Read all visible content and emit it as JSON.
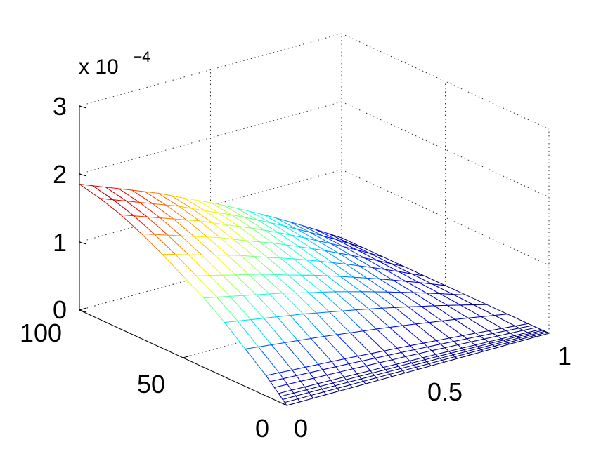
{
  "chart_data": {
    "type": "surface",
    "render": "mesh",
    "colormap": "jet",
    "x_axis": {
      "ticks": [
        "0",
        "0.5",
        "1"
      ],
      "range": [
        0,
        1
      ]
    },
    "y_axis": {
      "ticks": [
        "0",
        "50",
        "100"
      ],
      "range": [
        0,
        100
      ]
    },
    "z_axis": {
      "ticks": [
        "0",
        "1",
        "2",
        "3"
      ],
      "range": [
        0,
        3
      ],
      "multiplier": "x 10",
      "multiplier_exponent": "−4"
    },
    "grid": true,
    "z_at_x0_y100": 1.85,
    "z_along_y_at_x0": {
      "y": [
        0,
        5,
        10,
        20,
        30,
        40,
        50,
        60,
        70,
        80,
        90,
        100
      ],
      "z": [
        0.0,
        0.15,
        0.3,
        0.55,
        0.8,
        1.02,
        1.2,
        1.38,
        1.54,
        1.68,
        1.78,
        1.85
      ]
    },
    "z_along_x_at_y100": {
      "x": [
        0,
        0.1,
        0.2,
        0.3,
        0.4,
        0.5,
        0.6,
        0.7,
        0.8,
        0.9,
        1.0
      ],
      "z": [
        1.85,
        1.7,
        1.55,
        1.4,
        1.22,
        1.05,
        0.86,
        0.66,
        0.45,
        0.23,
        0.0
      ]
    }
  }
}
